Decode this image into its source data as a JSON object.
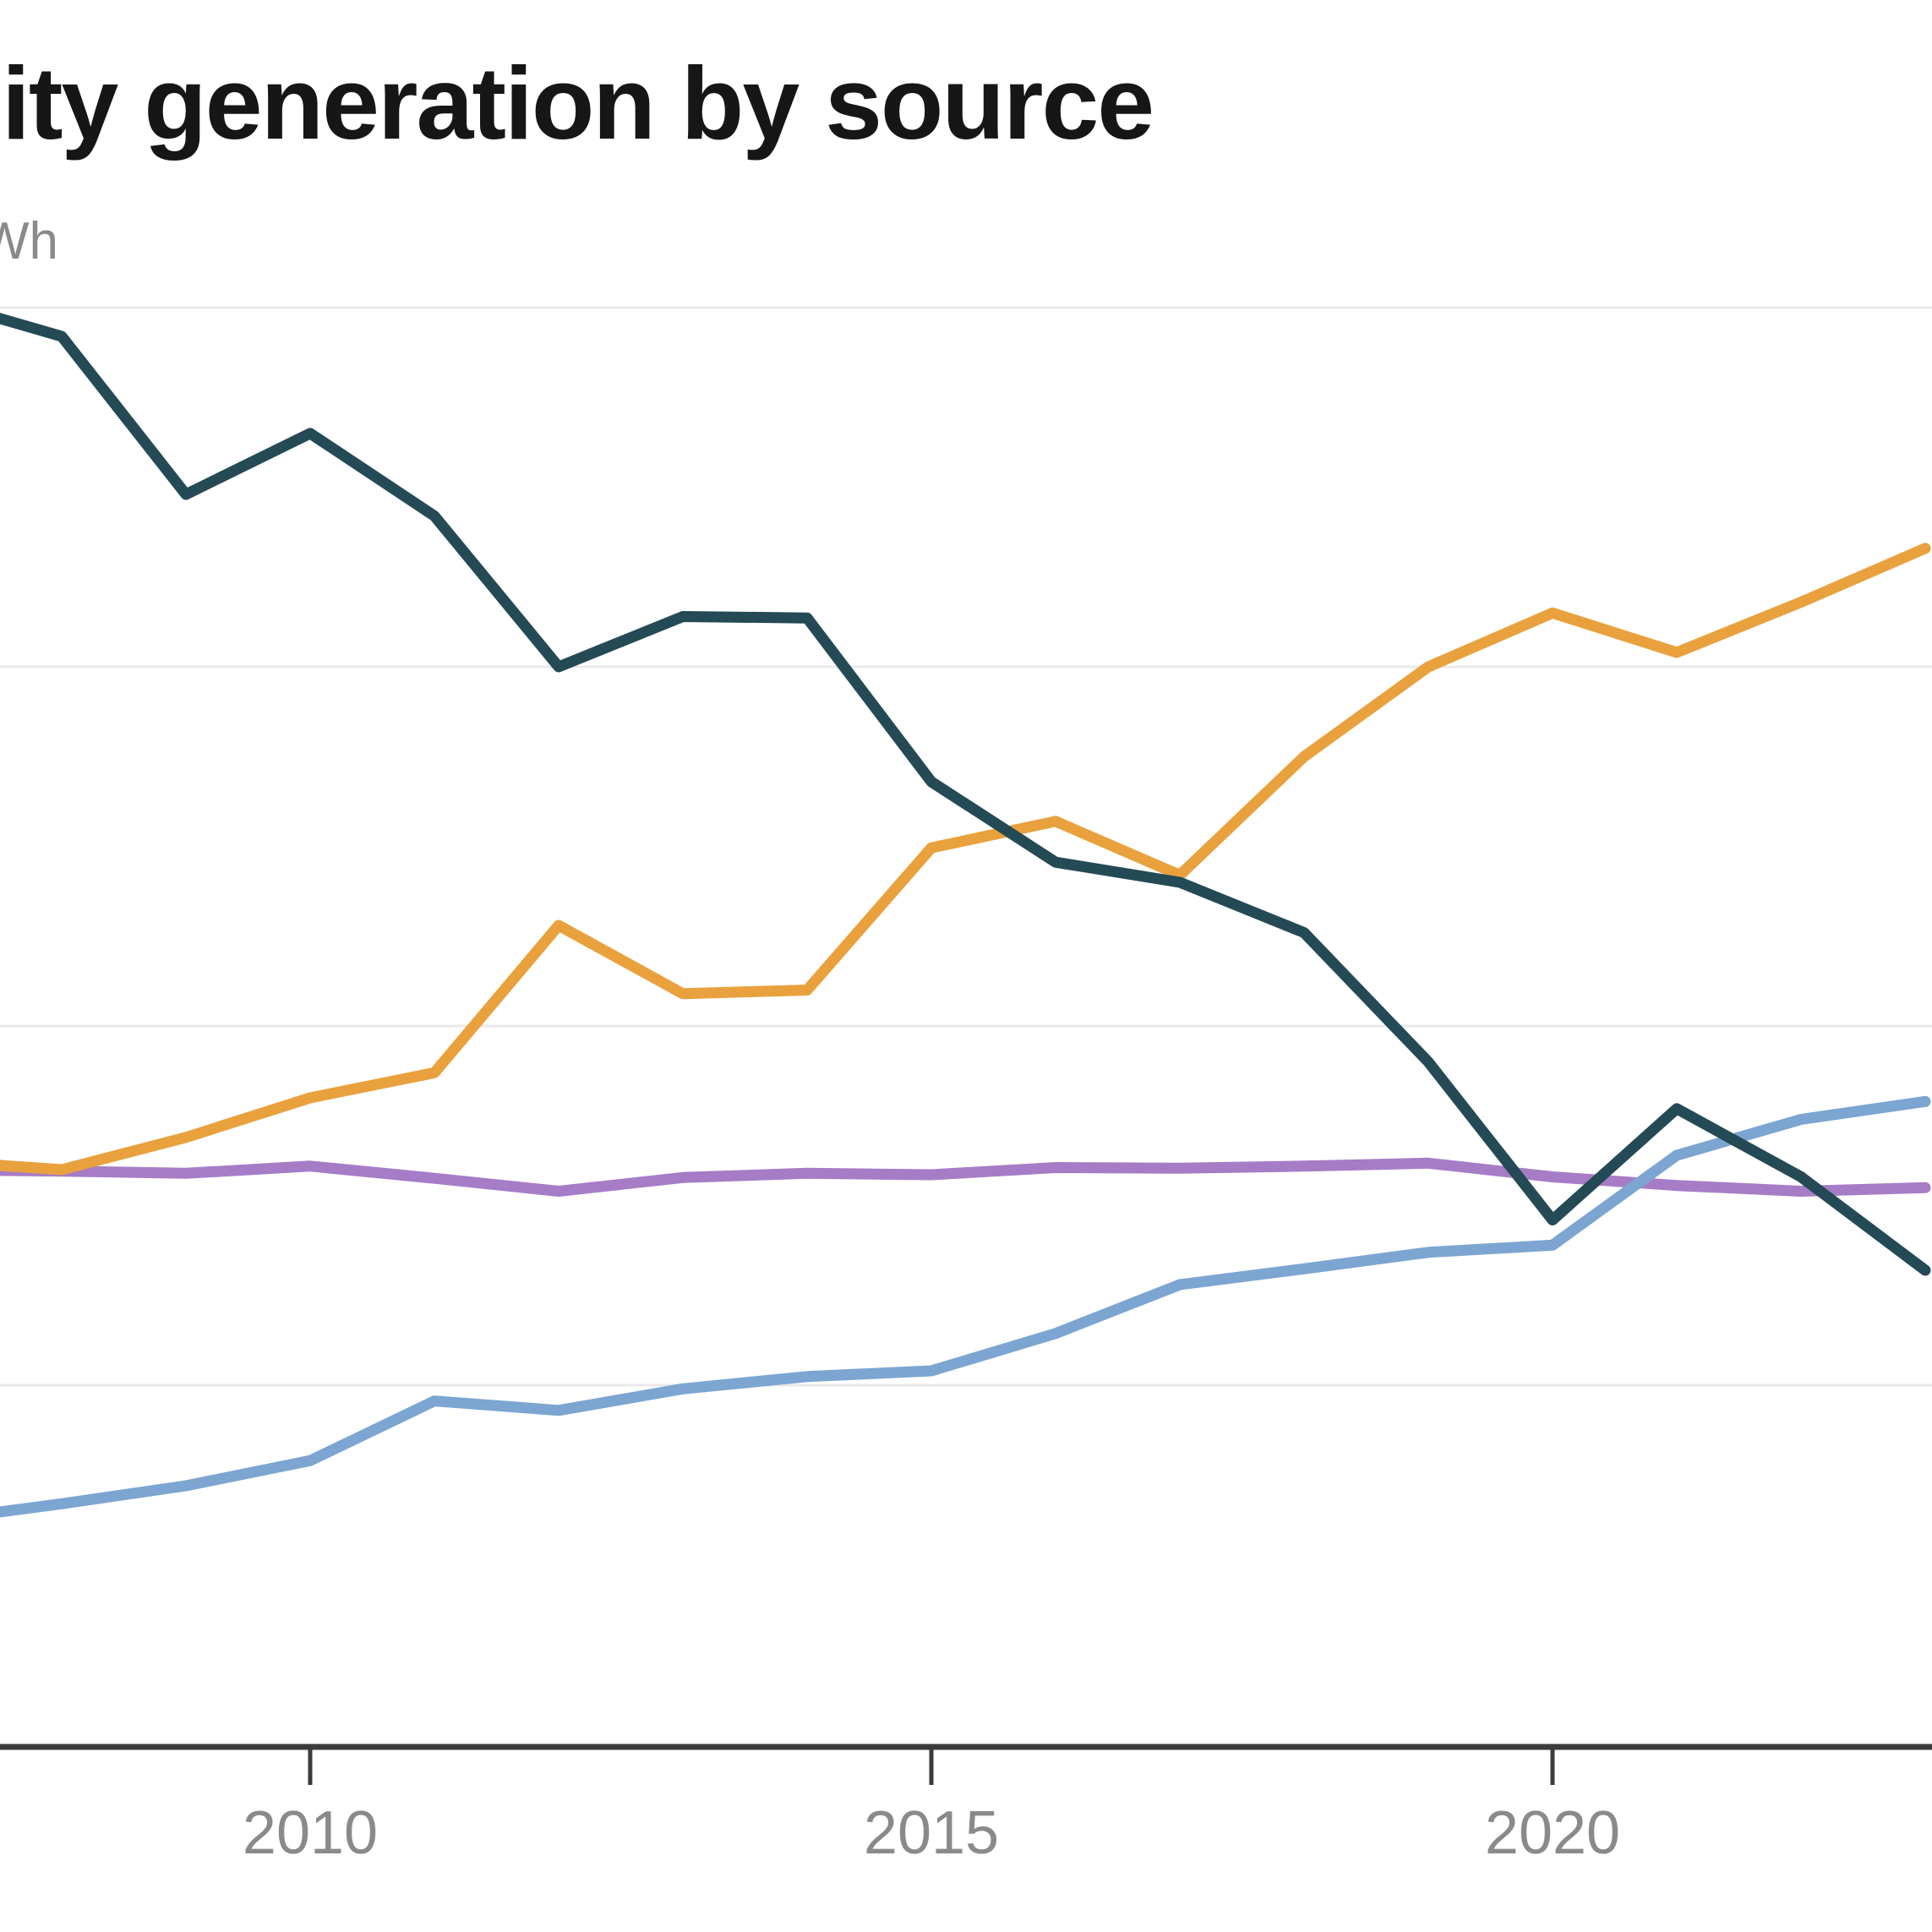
{
  "header": {
    "title": "ity generation by source"
  },
  "y_axis": {
    "unit_label": "Wh"
  },
  "x_axis": {
    "ticks": [
      {
        "label": "2010",
        "year": 2010
      },
      {
        "label": "2015",
        "year": 2015
      },
      {
        "label": "2020",
        "year": 2020
      }
    ]
  },
  "colors": {
    "title": "#161616",
    "axis_line": "#3b3b3b",
    "tick_mark": "#3b3b3b",
    "tick_label": "#8a8a8a",
    "gridline": "#e9e9e9",
    "dark_teal_line": "#244A55",
    "orange_line": "#E9A13E",
    "purple_line": "#A77CC6",
    "light_blue_line": "#7CA5D1"
  },
  "chart_data": {
    "type": "line",
    "title_visible_text": "ity generation by source",
    "unit_hint": "Wh (left-cropped unit label, values in TWh)",
    "x": [
      2007,
      2008,
      2009,
      2010,
      2011,
      2012,
      2013,
      2014,
      2015,
      2016,
      2017,
      2018,
      2019,
      2020,
      2021,
      2022,
      2023
    ],
    "x_visible_range": [
      2007.5,
      2023.05
    ],
    "ylim": [
      0,
      2300
    ],
    "y_gridline_values": [
      2000,
      1500,
      1000,
      500
    ],
    "grid": "horizontal-only",
    "legend": "none-visible",
    "series": [
      {
        "id": "purple",
        "name": "purple line (flat, ~800 TWh)",
        "color": "#A77CC6",
        "values": [
          800,
          798,
          795,
          805,
          788,
          770,
          789,
          795,
          793,
          803,
          802,
          805,
          809,
          790,
          778,
          770,
          775
        ]
      },
      {
        "id": "light-blue",
        "name": "light blue line (rising)",
        "color": "#7CA5D1",
        "values": [
          312,
          335,
          360,
          395,
          478,
          465,
          495,
          512,
          520,
          572,
          640,
          662,
          685,
          695,
          820,
          870,
          895
        ]
      },
      {
        "id": "orange",
        "name": "orange line (rising)",
        "color": "#E9A13E",
        "values": [
          812,
          800,
          845,
          900,
          935,
          1140,
          1045,
          1050,
          1248,
          1285,
          1210,
          1375,
          1500,
          1575,
          1520,
          1590,
          1665
        ]
      },
      {
        "id": "dark-teal",
        "name": "dark teal line (declining)",
        "color": "#244A55",
        "values": [
          2010,
          1960,
          1740,
          1825,
          1710,
          1500,
          1570,
          1568,
          1340,
          1228,
          1200,
          1130,
          950,
          730,
          885,
          790,
          660
        ]
      }
    ]
  }
}
